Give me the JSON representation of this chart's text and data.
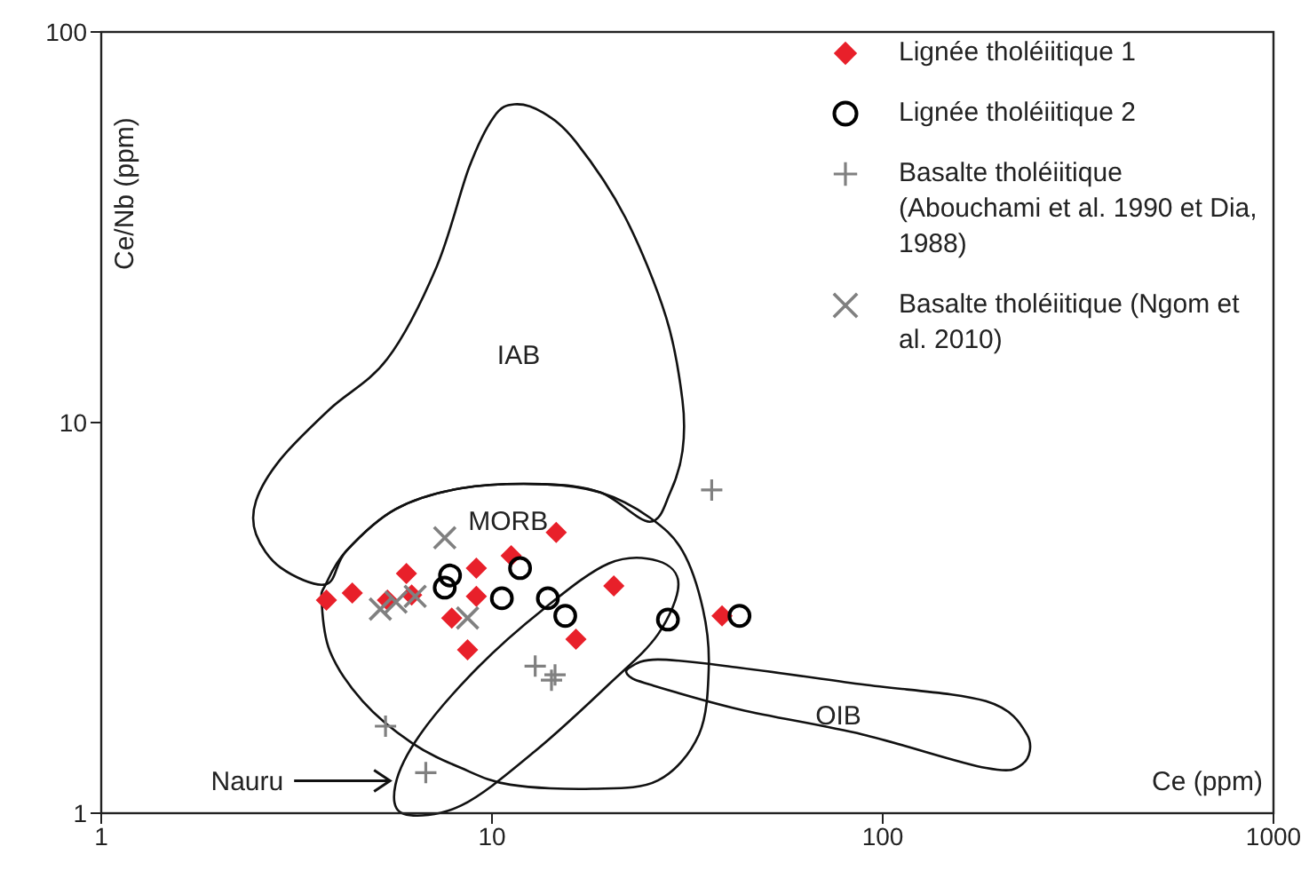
{
  "chart_data": {
    "type": "scatter",
    "xlabel": "Ce (ppm)",
    "ylabel": "Ce/Nb (ppm)",
    "log": "xy",
    "xlim": [
      1,
      1000
    ],
    "xticks": [
      1,
      10,
      100,
      1000
    ],
    "ylim": [
      1,
      100
    ],
    "yticks": [
      1,
      10,
      100
    ],
    "grid": false,
    "legend": "top right",
    "series": [
      {
        "name": "Lignée tholéiitique 1",
        "color": "#e8202a",
        "marker": "diamond",
        "x": [
          3.77,
          4.39,
          5.4,
          6.04,
          6.23,
          7.89,
          8.66,
          9.12,
          9.12,
          11.2,
          14.6,
          20.5,
          16.4,
          38.8
        ],
        "values": [
          3.51,
          3.66,
          3.51,
          4.11,
          3.62,
          3.16,
          2.62,
          4.24,
          3.59,
          4.56,
          5.23,
          3.82,
          2.79,
          3.2
        ]
      },
      {
        "name": "Lignée tholéiitique 2",
        "color": "#000000",
        "marker": "circle",
        "x": [
          7.81,
          7.57,
          10.6,
          11.8,
          13.9,
          15.4,
          28.2,
          43
        ],
        "values": [
          4.06,
          3.78,
          3.55,
          4.24,
          3.55,
          3.2,
          3.13,
          3.2
        ]
      },
      {
        "name": "Basalte tholéiitique (Abouchami et al. 1990 et Dia, 1988)",
        "color": "#808080",
        "marker": "cross",
        "x": [
          36.5,
          12.9,
          14.5,
          14.2,
          5.34,
          6.77
        ],
        "values": [
          6.72,
          2.38,
          2.26,
          2.19,
          1.67,
          1.27
        ]
      },
      {
        "name": "Basalte tholéiitique (Ngom et al. 2010)",
        "color": "#808080",
        "marker": "x",
        "x": [
          7.57,
          5.18,
          5.68,
          6.36,
          8.66
        ],
        "values": [
          5.07,
          3.33,
          3.47,
          3.59,
          3.16
        ]
      }
    ],
    "annotations": [
      "IAB",
      "MORB",
      "OIB",
      "Nauru"
    ]
  }
}
